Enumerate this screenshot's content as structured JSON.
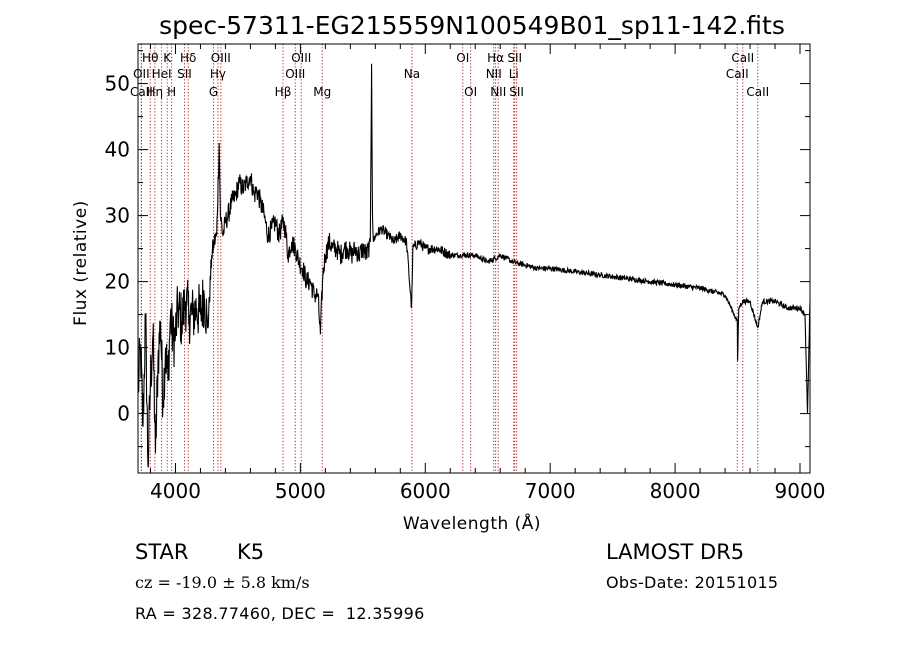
{
  "figure": {
    "title": "spec-57311-EG215559N100549B01_sp11-142.fits",
    "object_class": "STAR",
    "subclass": "K5",
    "survey": "LAMOST DR5",
    "redshift_text": "cz = -19.0 ± 5.8 km/s",
    "obs_date_text": "Obs-Date: 20151015",
    "coords_text": "RA = 328.77460, DEC =  12.35996"
  },
  "chart_data": {
    "type": "line",
    "title": "spec-57311-EG215559N100549B01_sp11-142.fits",
    "xlabel": "Wavelength (Å)",
    "ylabel": "Flux (relative)",
    "xlim": [
      3700,
      9080
    ],
    "ylim": [
      -9,
      56
    ],
    "xticks": [
      4000,
      5000,
      6000,
      7000,
      8000,
      9000
    ],
    "yticks": [
      0,
      10,
      20,
      30,
      40,
      50
    ],
    "grid": false,
    "line_color": "#000000",
    "marker_color": "#b22222",
    "series": [
      {
        "x": [
          3700,
          3720,
          3740,
          3760,
          3780,
          3800,
          3820,
          3840,
          3860,
          3880,
          3900,
          3920,
          3940,
          3960,
          3980,
          4000,
          4020,
          4050,
          4080,
          4110,
          4140,
          4170,
          4200,
          4230,
          4260,
          4290,
          4310,
          4330,
          4350,
          4360,
          4380,
          4400,
          4420,
          4450,
          4480,
          4510,
          4540,
          4570,
          4600,
          4630,
          4650,
          4680,
          4710,
          4740,
          4770,
          4800,
          4830,
          4860,
          4880,
          4900,
          4930,
          4960,
          4990,
          5020,
          5050,
          5080,
          5110,
          5140,
          5160,
          5180,
          5200,
          5230,
          5260,
          5290,
          5320,
          5350,
          5380,
          5410,
          5440,
          5470,
          5500,
          5530,
          5560,
          5570,
          5577,
          5585,
          5600,
          5650,
          5700,
          5750,
          5800,
          5850,
          5890,
          5895,
          5900,
          5950,
          6000,
          6100,
          6200,
          6300,
          6400,
          6500,
          6560,
          6600,
          6700,
          6800,
          6900,
          7000,
          7200,
          7400,
          7600,
          7800,
          8000,
          8200,
          8400,
          8498,
          8500,
          8510,
          8540,
          8600,
          8662,
          8700,
          8800,
          8900,
          9000,
          9040,
          9060,
          9080
        ],
        "y": [
          3,
          10,
          -2,
          15,
          -8,
          5,
          12,
          -6,
          8,
          14,
          2,
          10,
          5,
          15,
          11,
          12,
          16,
          14,
          17,
          15,
          15,
          16,
          15,
          18,
          13,
          24,
          26,
          27,
          41,
          30,
          27,
          29,
          30,
          32,
          33,
          35,
          34,
          35,
          36,
          33,
          34,
          32,
          30,
          27,
          28,
          29,
          27,
          29,
          28,
          24,
          26,
          25,
          23,
          22,
          20,
          20,
          18,
          18,
          12,
          21,
          24,
          26,
          25,
          25,
          24,
          25,
          25,
          24,
          25,
          24,
          25,
          24,
          26,
          53,
          30,
          26,
          27,
          28,
          27,
          26,
          27,
          26,
          16,
          20,
          25,
          26,
          25,
          25,
          24,
          24,
          24,
          23,
          23.5,
          24,
          23,
          22.5,
          22,
          22,
          21.5,
          21,
          20.5,
          20,
          19.5,
          19,
          18,
          14,
          8,
          16,
          17,
          17,
          13,
          17,
          17,
          16,
          16,
          15,
          0,
          17
        ]
      }
    ],
    "spectral_lines": [
      {
        "label": "Hθ",
        "wavelength": 3798,
        "row": 1
      },
      {
        "label": "OII",
        "wavelength": 3727,
        "row": 2
      },
      {
        "label": "CaII",
        "wavelength": 3727,
        "row": 3
      },
      {
        "label": "Hη",
        "wavelength": 3835,
        "row": 3
      },
      {
        "label": "K",
        "wavelength": 3934,
        "row": 1
      },
      {
        "label": "HeI",
        "wavelength": 3889,
        "row": 2
      },
      {
        "label": "H",
        "wavelength": 3969,
        "row": 3
      },
      {
        "label": "Hδ",
        "wavelength": 4102,
        "row": 1
      },
      {
        "label": "SII",
        "wavelength": 4072,
        "row": 2
      },
      {
        "label": "OIII",
        "wavelength": 4363,
        "row": 1
      },
      {
        "label": "Hγ",
        "wavelength": 4340,
        "row": 2
      },
      {
        "label": "G",
        "wavelength": 4305,
        "row": 3
      },
      {
        "label": "OIII",
        "wavelength": 5007,
        "row": 1
      },
      {
        "label": "OIII",
        "wavelength": 4959,
        "row": 2
      },
      {
        "label": "Hβ",
        "wavelength": 4861,
        "row": 3
      },
      {
        "label": "Mg",
        "wavelength": 5175,
        "row": 3
      },
      {
        "label": "Na",
        "wavelength": 5893,
        "row": 2
      },
      {
        "label": "OI",
        "wavelength": 6300,
        "row": 1
      },
      {
        "label": "OI",
        "wavelength": 6363,
        "row": 3
      },
      {
        "label": "Hα",
        "wavelength": 6563,
        "row": 1
      },
      {
        "label": "NII",
        "wavelength": 6548,
        "row": 2
      },
      {
        "label": "NII",
        "wavelength": 6584,
        "row": 3
      },
      {
        "label": "SII",
        "wavelength": 6716,
        "row": 1
      },
      {
        "label": "Li",
        "wavelength": 6708,
        "row": 2
      },
      {
        "label": "SII",
        "wavelength": 6731,
        "row": 3
      },
      {
        "label": "CaII",
        "wavelength": 8542,
        "row": 1
      },
      {
        "label": "CaII",
        "wavelength": 8498,
        "row": 2
      },
      {
        "label": "CaII",
        "wavelength": 8662,
        "row": 3
      }
    ]
  }
}
